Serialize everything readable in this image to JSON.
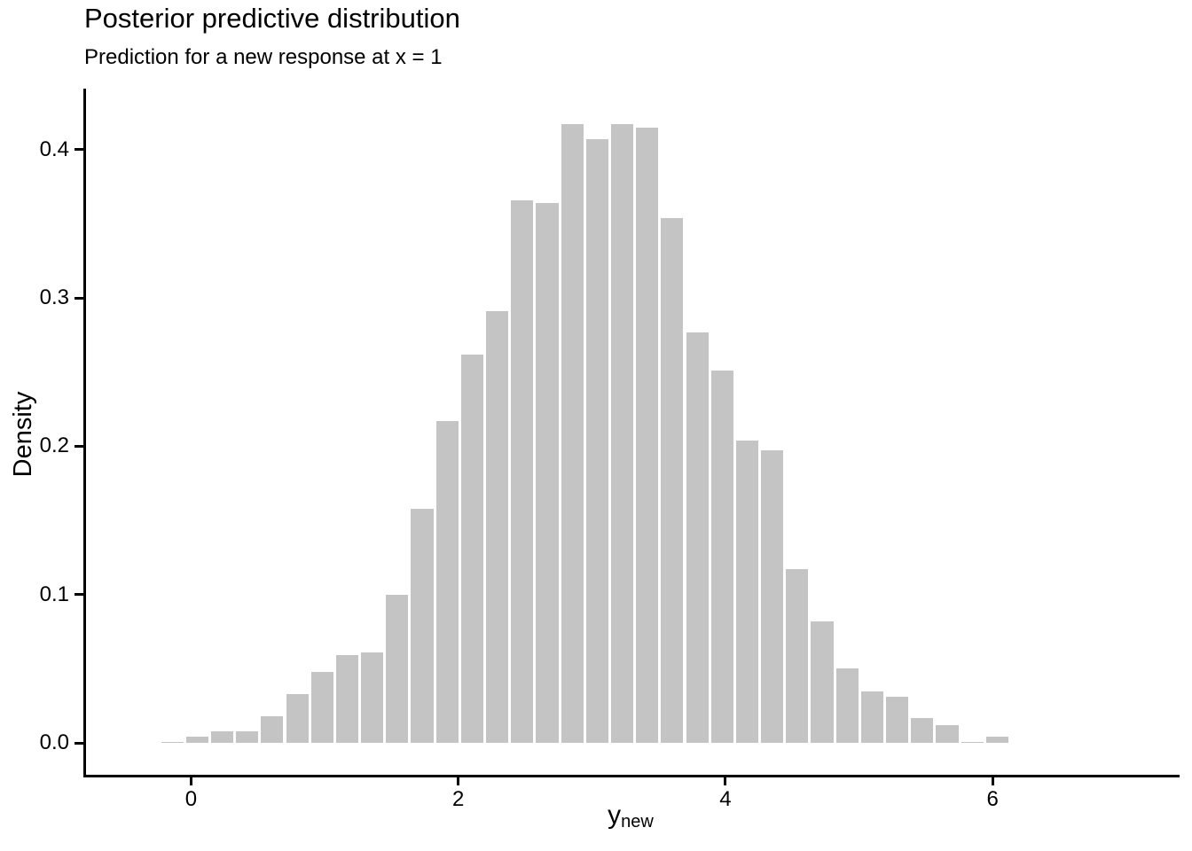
{
  "chart_data": {
    "type": "bar",
    "subtype": "histogram",
    "title": "Posterior predictive distribution",
    "subtitle": "Prediction for a new response at x = 1",
    "ylabel": "Density",
    "xlabel_base": "y",
    "xlabel_sub": "new",
    "xlim": [
      -0.8,
      7.4
    ],
    "ylim": [
      -0.022,
      0.441
    ],
    "grid": "off",
    "legend": "none",
    "binwidth": 0.187,
    "bar_color": "#c4c4c4",
    "axis_color": "#000000",
    "text_color": "#000000",
    "x_ticks": {
      "values": [
        0,
        2,
        4,
        6
      ],
      "labels": [
        "0",
        "2",
        "4",
        "6"
      ]
    },
    "y_ticks": {
      "values": [
        0.0,
        0.1,
        0.2,
        0.3,
        0.4
      ],
      "labels": [
        "0.0",
        "0.1",
        "0.2",
        "0.3",
        "0.4"
      ]
    },
    "bins": {
      "x": [
        -0.141,
        0.046,
        0.233,
        0.42,
        0.607,
        0.795,
        0.982,
        1.169,
        1.356,
        1.543,
        1.73,
        1.917,
        2.104,
        2.292,
        2.479,
        2.666,
        2.853,
        3.04,
        3.227,
        3.414,
        3.601,
        3.789,
        3.976,
        4.163,
        4.35,
        4.537,
        4.724,
        4.911,
        5.098,
        5.286,
        5.473,
        5.66,
        5.847,
        6.034
      ],
      "density": [
        0.001,
        0.004,
        0.008,
        0.008,
        0.018,
        0.033,
        0.048,
        0.059,
        0.061,
        0.1,
        0.158,
        0.217,
        0.262,
        0.291,
        0.366,
        0.364,
        0.417,
        0.407,
        0.417,
        0.415,
        0.354,
        0.277,
        0.251,
        0.204,
        0.197,
        0.117,
        0.082,
        0.05,
        0.035,
        0.031,
        0.017,
        0.012,
        0.001,
        0.004
      ]
    }
  }
}
